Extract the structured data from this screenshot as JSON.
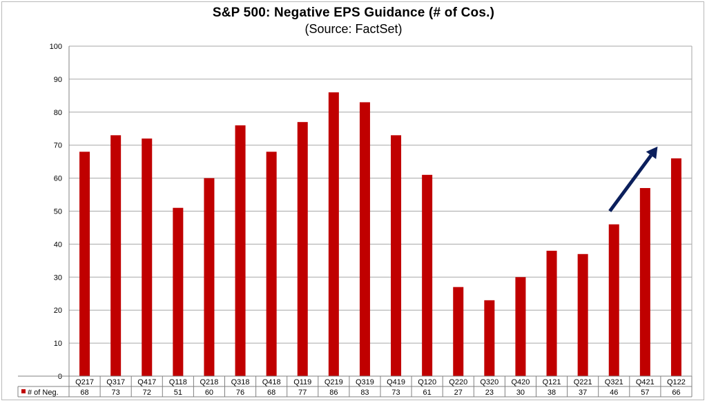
{
  "chart_data": {
    "type": "bar",
    "title": "S&P 500: Negative EPS Guidance (# of Cos.)",
    "subtitle": "(Source: FactSet)",
    "categories": [
      "Q217",
      "Q317",
      "Q417",
      "Q118",
      "Q218",
      "Q318",
      "Q418",
      "Q119",
      "Q219",
      "Q319",
      "Q419",
      "Q120",
      "Q220",
      "Q320",
      "Q420",
      "Q121",
      "Q221",
      "Q321",
      "Q421",
      "Q122"
    ],
    "series": [
      {
        "name": "# of Neg.",
        "color": "#c00000",
        "values": [
          68,
          73,
          72,
          51,
          60,
          76,
          68,
          77,
          86,
          83,
          73,
          61,
          27,
          23,
          30,
          38,
          37,
          46,
          57,
          66
        ]
      }
    ],
    "ylim": [
      0,
      100
    ],
    "yticks": [
      0,
      10,
      20,
      30,
      40,
      50,
      60,
      70,
      80,
      90,
      100
    ],
    "grid": true,
    "data_table": true,
    "annotation": {
      "type": "arrow",
      "color": "#0b1f5c",
      "from_category": "Q321",
      "from_value": 50,
      "to_category": "Q122",
      "to_value": 70
    }
  }
}
